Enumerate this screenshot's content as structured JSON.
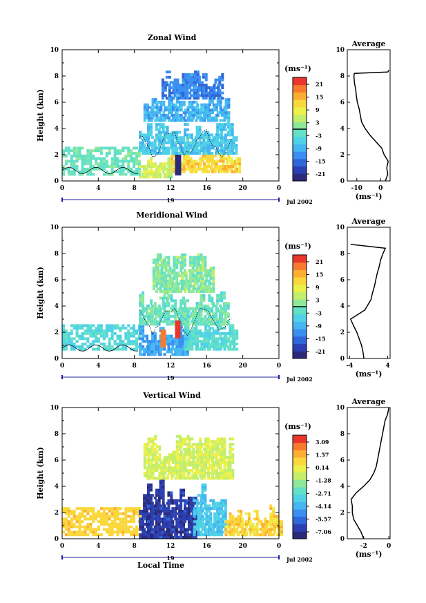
{
  "colors": {
    "colormap": [
      "#2b2a7a",
      "#2b3fb0",
      "#2f66d8",
      "#3a8ff0",
      "#45b6f2",
      "#4fd2e6",
      "#63e0c6",
      "#8fe89a",
      "#c2ee6c",
      "#ecf04a",
      "#fad73a",
      "#fcae33",
      "#f87a2f",
      "#e9362a"
    ],
    "contour": "#000000",
    "axis": "#000000",
    "date_line": "#1a1aa0"
  },
  "date_axis": {
    "day_label": "19",
    "month_label": "Jul 2002"
  },
  "x_label": "Local Time",
  "colorbar_unit": "(ms⁻¹)",
  "profile_unit": "(ms⁻¹)",
  "profile_title": "Average",
  "chart_data": [
    {
      "type": "heatmap",
      "title": "Zonal Wind",
      "ylabel": "Height (km)",
      "x_ticks": [
        "0",
        "4",
        "8",
        "12",
        "16",
        "20",
        "0"
      ],
      "xlim_hours": [
        0,
        24
      ],
      "y_ticks": [
        "0",
        "2",
        "4",
        "6",
        "8",
        "10"
      ],
      "ylim_km": [
        0,
        10
      ],
      "colorbar_ticks": [
        "21",
        "15",
        "9",
        "3",
        "-3",
        "-9",
        "-15",
        "-21"
      ],
      "colorbar_range": [
        -24,
        24
      ],
      "colorbar_zero_line": 0,
      "profile": {
        "title": "Average",
        "xlabel": "(ms⁻¹)",
        "x_ticks": [
          "-10",
          "0"
        ],
        "xlim": [
          -14,
          4
        ],
        "y_ticks": [
          "0",
          "2",
          "4",
          "6",
          "8",
          "10"
        ],
        "points": [
          {
            "h": 0.0,
            "v": 2.0
          },
          {
            "h": 0.5,
            "v": 3.0
          },
          {
            "h": 1.0,
            "v": 2.6
          },
          {
            "h": 1.5,
            "v": 3.2
          },
          {
            "h": 2.0,
            "v": 1.5
          },
          {
            "h": 2.5,
            "v": 0.5
          },
          {
            "h": 3.0,
            "v": -2.0
          },
          {
            "h": 3.5,
            "v": -4.5
          },
          {
            "h": 4.0,
            "v": -6.5
          },
          {
            "h": 4.5,
            "v": -8.0
          },
          {
            "h": 5.0,
            "v": -8.5
          },
          {
            "h": 5.5,
            "v": -9.0
          },
          {
            "h": 6.0,
            "v": -9.8
          },
          {
            "h": 6.5,
            "v": -10.2
          },
          {
            "h": 7.0,
            "v": -10.5
          },
          {
            "h": 7.5,
            "v": -11.0
          },
          {
            "h": 8.0,
            "v": -11.2
          },
          {
            "h": 8.2,
            "v": -11.0
          },
          {
            "h": 8.3,
            "v": 3.0
          },
          {
            "h": 8.45,
            "v": 3.5
          }
        ]
      },
      "field": {
        "background": {
          "hour_range": [
            0,
            8.5
          ],
          "km_range": [
            0.4,
            2.6
          ],
          "value": -1
        },
        "blobs": [
          {
            "h0": 8.5,
            "h1": 12,
            "k0": 0.2,
            "k1": 1.8,
            "value": 6
          },
          {
            "h0": 12,
            "h1": 19.5,
            "k0": 0.6,
            "k1": 2.4,
            "value": 12
          },
          {
            "h0": 8.5,
            "h1": 19,
            "k0": 2.0,
            "k1": 4.5,
            "value": -6
          },
          {
            "h0": 9,
            "h1": 18,
            "k0": 4.5,
            "k1": 6.5,
            "value": -9
          },
          {
            "h0": 11,
            "h1": 17.5,
            "k0": 6.2,
            "k1": 8.5,
            "value": -13
          }
        ],
        "dark_spot": {
          "hour": 12.8,
          "km": 1.2,
          "value": -21
        }
      }
    },
    {
      "type": "heatmap",
      "title": "Meridional Wind",
      "ylabel": "Height (km)",
      "x_ticks": [
        "0",
        "4",
        "8",
        "12",
        "16",
        "20",
        "0"
      ],
      "xlim_hours": [
        0,
        24
      ],
      "y_ticks": [
        "0",
        "2",
        "4",
        "6",
        "8",
        "10"
      ],
      "ylim_km": [
        0,
        10
      ],
      "colorbar_ticks": [
        "21",
        "15",
        "9",
        "3",
        "-3",
        "-9",
        "-15",
        "-21"
      ],
      "colorbar_range": [
        -24,
        24
      ],
      "colorbar_zero_line": 0,
      "profile": {
        "title": "Average",
        "xlabel": "(ms⁻¹)",
        "x_ticks": [
          "-4",
          "4"
        ],
        "xlim": [
          -4.5,
          4.5
        ],
        "y_ticks": [
          "0",
          "2",
          "4",
          "6",
          "8",
          "10"
        ],
        "points": [
          {
            "h": 0.0,
            "v": -1.0
          },
          {
            "h": 0.5,
            "v": -1.2
          },
          {
            "h": 1.0,
            "v": -1.5
          },
          {
            "h": 1.5,
            "v": -2.0
          },
          {
            "h": 2.0,
            "v": -2.5
          },
          {
            "h": 2.5,
            "v": -3.2
          },
          {
            "h": 3.0,
            "v": -3.8
          },
          {
            "h": 3.3,
            "v": -2.5
          },
          {
            "h": 3.7,
            "v": -0.8
          },
          {
            "h": 4.0,
            "v": -0.3
          },
          {
            "h": 4.5,
            "v": 0.5
          },
          {
            "h": 5.0,
            "v": 0.8
          },
          {
            "h": 5.5,
            "v": 1.2
          },
          {
            "h": 6.0,
            "v": 1.5
          },
          {
            "h": 6.5,
            "v": 1.8
          },
          {
            "h": 7.0,
            "v": 2.2
          },
          {
            "h": 7.5,
            "v": 2.5
          },
          {
            "h": 8.0,
            "v": 3.0
          },
          {
            "h": 8.4,
            "v": 3.5
          },
          {
            "h": 8.7,
            "v": -3.8
          }
        ]
      },
      "field": {
        "background": {
          "hour_range": [
            0,
            8.5
          ],
          "km_range": [
            0.6,
            2.6
          ],
          "value": -4
        },
        "blobs": [
          {
            "h0": 8.5,
            "h1": 13.5,
            "k0": 0.2,
            "k1": 2.5,
            "value": -10
          },
          {
            "h0": 13.5,
            "h1": 19,
            "k0": 0.6,
            "k1": 3.5,
            "value": -3
          },
          {
            "h0": 8.5,
            "h1": 18,
            "k0": 2.5,
            "k1": 5.0,
            "value": -1
          },
          {
            "h0": 10,
            "h1": 16.5,
            "k0": 5.0,
            "k1": 8.0,
            "value": 1
          }
        ],
        "hot_spots": [
          {
            "hour": 11.2,
            "km": 1.6,
            "value": 20
          },
          {
            "hour": 12.8,
            "km": 2.3,
            "value": 22
          }
        ]
      }
    },
    {
      "type": "heatmap",
      "title": "Vertical Wind",
      "ylabel": "Height (km)",
      "x_ticks": [
        "0",
        "4",
        "8",
        "12",
        "16",
        "20",
        "0"
      ],
      "xlim_hours": [
        0,
        24
      ],
      "y_ticks": [
        "0",
        "2",
        "4",
        "6",
        "8",
        "10"
      ],
      "ylim_km": [
        0,
        10
      ],
      "colorbar_ticks": [
        "3.09",
        "1.57",
        "0.14",
        "-1.28",
        "-2.71",
        "-4.14",
        "-5.57",
        "-7.06"
      ],
      "colorbar_range": [
        -7.5,
        3.5
      ],
      "colorbar_zero_line": null,
      "profile": {
        "title": "Average",
        "xlabel": "(ms⁻¹)",
        "x_ticks": [
          "-2",
          "0"
        ],
        "xlim": [
          -3.3,
          0.1
        ],
        "y_ticks": [
          "0",
          "2",
          "4",
          "6",
          "8",
          "10"
        ],
        "points": [
          {
            "h": 0.0,
            "v": -2.0
          },
          {
            "h": 0.5,
            "v": -2.2
          },
          {
            "h": 1.0,
            "v": -2.5
          },
          {
            "h": 1.5,
            "v": -2.8
          },
          {
            "h": 2.0,
            "v": -2.9
          },
          {
            "h": 2.5,
            "v": -2.9
          },
          {
            "h": 3.0,
            "v": -3.0
          },
          {
            "h": 3.5,
            "v": -2.6
          },
          {
            "h": 4.0,
            "v": -2.0
          },
          {
            "h": 4.5,
            "v": -1.5
          },
          {
            "h": 5.0,
            "v": -1.2
          },
          {
            "h": 5.5,
            "v": -1.0
          },
          {
            "h": 6.0,
            "v": -0.9
          },
          {
            "h": 6.5,
            "v": -0.8
          },
          {
            "h": 7.0,
            "v": -0.7
          },
          {
            "h": 7.5,
            "v": -0.6
          },
          {
            "h": 8.0,
            "v": -0.5
          },
          {
            "h": 8.5,
            "v": -0.4
          },
          {
            "h": 9.0,
            "v": -0.3
          },
          {
            "h": 9.5,
            "v": -0.1
          },
          {
            "h": 10.0,
            "v": 0.0
          }
        ]
      },
      "field": {
        "background": {
          "hour_range": [
            0,
            8.5
          ],
          "km_range": [
            0.2,
            2.4
          ],
          "value": 0.8
        },
        "blobs": [
          {
            "h0": 8.5,
            "h1": 14.5,
            "k0": 0.0,
            "k1": 4.6,
            "value": -6.5
          },
          {
            "h0": 14.5,
            "h1": 18,
            "k0": 0.2,
            "k1": 4.8,
            "value": -3.5
          },
          {
            "h0": 9,
            "h1": 18.5,
            "k0": 4.5,
            "k1": 8.0,
            "value": -0.5
          },
          {
            "h0": 18,
            "h1": 24,
            "k0": 0.2,
            "k1": 2.5,
            "value": 0.8
          }
        ]
      }
    }
  ]
}
